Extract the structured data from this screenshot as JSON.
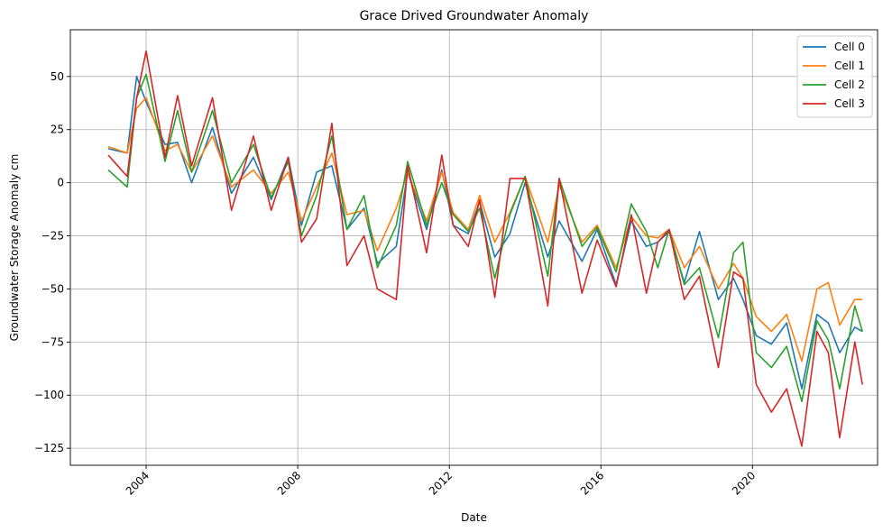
{
  "chart_data": {
    "type": "line",
    "title": "Grace Drived Groundwater Anomaly",
    "xlabel": "Date",
    "ylabel": "Groundwater Storage Anomaly cm",
    "xlim": [
      2002.0,
      2023.3
    ],
    "ylim": [
      -133,
      72
    ],
    "x_ticks": [
      2004,
      2008,
      2012,
      2016,
      2020
    ],
    "x_tick_labels": [
      "2004",
      "2008",
      "2012",
      "2016",
      "2020"
    ],
    "y_ticks": [
      50,
      25,
      0,
      -25,
      -50,
      -75,
      -100,
      -125
    ],
    "y_tick_labels": [
      "50",
      "25",
      "0",
      "−25",
      "−50",
      "−75",
      "−100",
      "−125"
    ],
    "grid": true,
    "legend_position": "top-right",
    "x": [
      2003.0,
      2003.5,
      2003.75,
      2004.0,
      2004.5,
      2004.83,
      2005.2,
      2005.75,
      2006.25,
      2006.83,
      2007.3,
      2007.75,
      2008.1,
      2008.5,
      2008.9,
      2009.3,
      2009.75,
      2010.1,
      2010.6,
      2010.9,
      2011.4,
      2011.8,
      2012.1,
      2012.5,
      2012.8,
      2013.2,
      2013.6,
      2014.0,
      2014.6,
      2014.9,
      2015.5,
      2015.9,
      2016.4,
      2016.8,
      2017.2,
      2017.5,
      2017.8,
      2018.2,
      2018.6,
      2019.1,
      2019.5,
      2019.75,
      2020.1,
      2020.5,
      2020.9,
      2021.3,
      2021.7,
      2022.0,
      2022.3,
      2022.7,
      2022.9
    ],
    "series": [
      {
        "name": "Cell 0",
        "color": "#1f77b4",
        "values": [
          16,
          14,
          50,
          38,
          18,
          19,
          0,
          26,
          -5,
          12,
          -8,
          12,
          -20,
          5,
          8,
          -22,
          -12,
          -38,
          -30,
          5,
          -22,
          6,
          -20,
          -24,
          -9,
          -35,
          -24,
          0,
          -35,
          -18,
          -37,
          -22,
          -48,
          -18,
          -30,
          -28,
          -23,
          -47,
          -23,
          -55,
          -45,
          -55,
          -72,
          -76,
          -66,
          -97,
          -62,
          -66,
          -80,
          -68,
          -70
        ]
      },
      {
        "name": "Cell 1",
        "color": "#ff7f0e",
        "values": [
          17,
          14,
          35,
          40,
          15,
          18,
          5,
          22,
          -2,
          6,
          -5,
          5,
          -18,
          -2,
          14,
          -15,
          -13,
          -32,
          -12,
          5,
          -18,
          5,
          -14,
          -22,
          -6,
          -28,
          -14,
          3,
          -28,
          -1,
          -28,
          -20,
          -40,
          -16,
          -25,
          -26,
          -22,
          -40,
          -30,
          -50,
          -38,
          -45,
          -63,
          -70,
          -62,
          -84,
          -50,
          -47,
          -67,
          -55,
          -55
        ]
      },
      {
        "name": "Cell 2",
        "color": "#2ca02c",
        "values": [
          6,
          -2,
          40,
          51,
          10,
          34,
          5,
          34,
          0,
          18,
          -7,
          10,
          -25,
          -6,
          22,
          -22,
          -6,
          -40,
          -20,
          10,
          -20,
          0,
          -15,
          -23,
          -12,
          -45,
          -15,
          3,
          -44,
          2,
          -30,
          -21,
          -42,
          -10,
          -23,
          -40,
          -22,
          -48,
          -40,
          -73,
          -33,
          -28,
          -80,
          -87,
          -77,
          -103,
          -65,
          -74,
          -97,
          -58,
          -70
        ]
      },
      {
        "name": "Cell 3",
        "color": "#d62728",
        "values": [
          13,
          3,
          40,
          62,
          12,
          41,
          8,
          40,
          -13,
          22,
          -13,
          12,
          -28,
          -17,
          28,
          -39,
          -25,
          -50,
          -55,
          8,
          -33,
          13,
          -20,
          -30,
          -8,
          -54,
          2,
          2,
          -58,
          2,
          -52,
          -27,
          -49,
          -15,
          -52,
          -28,
          -22,
          -55,
          -44,
          -87,
          -42,
          -45,
          -95,
          -108,
          -97,
          -124,
          -70,
          -80,
          -120,
          -75,
          -95
        ]
      }
    ]
  }
}
